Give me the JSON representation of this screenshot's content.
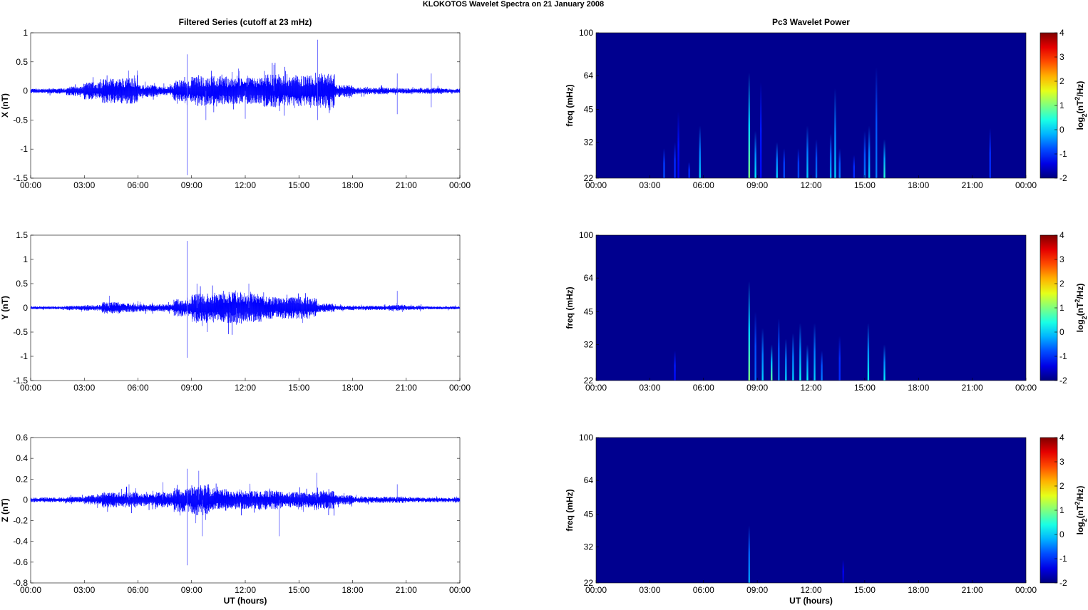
{
  "title": "KLOKOTOS Wavelet Spectra on 21 January   2008",
  "chart_data": [
    {
      "type": "line",
      "title": "Filtered Series (cutoff at 23 mHz)",
      "ylabel": "X (nT)",
      "xlabel": "",
      "ylim": [
        -1.5,
        1
      ],
      "yticks": [
        "1",
        "0.5",
        "0",
        "-0.5",
        "-1",
        "-1.5"
      ],
      "ytick_values": [
        1,
        0.5,
        0,
        -0.5,
        -1,
        -1.5
      ],
      "xticks": [
        "00:00",
        "03:00",
        "06:00",
        "09:00",
        "12:00",
        "15:00",
        "18:00",
        "21:00",
        "00:00"
      ],
      "envelope_hourly": [
        0.025,
        0.03,
        0.05,
        0.1,
        0.14,
        0.15,
        0.07,
        0.05,
        0.12,
        0.17,
        0.17,
        0.15,
        0.15,
        0.19,
        0.17,
        0.18,
        0.2,
        0.07,
        0.04,
        0.04,
        0.03,
        0.03,
        0.035,
        0.025
      ],
      "spikes": [
        [
          8.75,
          0.63
        ],
        [
          8.75,
          -1.45
        ],
        [
          16.05,
          0.88
        ],
        [
          16.05,
          -0.5
        ],
        [
          9.8,
          -0.5
        ],
        [
          20.5,
          0.3
        ],
        [
          20.5,
          -0.4
        ],
        [
          22.4,
          0.3
        ],
        [
          22.4,
          -0.28
        ],
        [
          13.6,
          0.45
        ],
        [
          12.0,
          -0.48
        ]
      ]
    },
    {
      "type": "line",
      "title": "",
      "ylabel": "Y (nT)",
      "xlabel": "",
      "ylim": [
        -1.5,
        1.5
      ],
      "yticks": [
        "1.5",
        "1",
        "0.5",
        "0",
        "-0.5",
        "-1",
        "-1.5"
      ],
      "ytick_values": [
        1.5,
        1,
        0.5,
        0,
        -0.5,
        -1,
        -1.5
      ],
      "xticks": [
        "00:00",
        "03:00",
        "06:00",
        "09:00",
        "12:00",
        "15:00",
        "18:00",
        "21:00",
        "00:00"
      ],
      "envelope_hourly": [
        0.02,
        0.02,
        0.03,
        0.04,
        0.08,
        0.06,
        0.05,
        0.05,
        0.12,
        0.2,
        0.2,
        0.22,
        0.2,
        0.15,
        0.15,
        0.15,
        0.06,
        0.03,
        0.03,
        0.03,
        0.04,
        0.03,
        0.02,
        0.02
      ],
      "spikes": [
        [
          8.75,
          1.38
        ],
        [
          8.75,
          -1.03
        ],
        [
          9.3,
          0.5
        ],
        [
          12.2,
          0.5
        ],
        [
          20.5,
          0.35
        ],
        [
          4.4,
          0.25
        ],
        [
          11.5,
          -0.35
        ]
      ]
    },
    {
      "type": "line",
      "title": "",
      "ylabel": "Z (nT)",
      "xlabel": "UT (hours)",
      "ylim": [
        -0.8,
        0.6
      ],
      "yticks": [
        "0.6",
        "0.4",
        "0.2",
        "0",
        "-0.2",
        "-0.4",
        "-0.6",
        "-0.8"
      ],
      "ytick_values": [
        0.6,
        0.4,
        0.2,
        0,
        -0.2,
        -0.4,
        -0.6,
        -0.8
      ],
      "xticks": [
        "00:00",
        "03:00",
        "06:00",
        "09:00",
        "12:00",
        "15:00",
        "18:00",
        "21:00",
        "00:00"
      ],
      "envelope_hourly": [
        0.015,
        0.015,
        0.02,
        0.03,
        0.05,
        0.05,
        0.04,
        0.05,
        0.08,
        0.1,
        0.07,
        0.06,
        0.06,
        0.06,
        0.05,
        0.05,
        0.06,
        0.03,
        0.02,
        0.02,
        0.02,
        0.015,
        0.015,
        0.015
      ],
      "spikes": [
        [
          8.75,
          0.3
        ],
        [
          8.75,
          -0.63
        ],
        [
          9.4,
          0.28
        ],
        [
          9.6,
          -0.35
        ],
        [
          13.9,
          -0.35
        ],
        [
          16.0,
          0.26
        ],
        [
          7.4,
          0.17
        ],
        [
          20.5,
          0.15
        ],
        [
          5.5,
          0.15
        ]
      ]
    },
    {
      "type": "heatmap",
      "title": "Pc3 Wavelet Power",
      "ylabel": "freq (mHz)",
      "xlabel": "",
      "ylim": [
        22,
        100
      ],
      "yscale": "log",
      "yticks": [
        "100",
        "64",
        "45",
        "32",
        "22"
      ],
      "ytick_values": [
        100,
        64,
        45,
        32,
        22
      ],
      "xticks": [
        "00:00",
        "03:00",
        "06:00",
        "09:00",
        "12:00",
        "15:00",
        "18:00",
        "21:00",
        "00:00"
      ],
      "colorbar": {
        "label": "log2(nT2/Hz)",
        "ticks": [
          "4",
          "3",
          "2",
          "1",
          "0",
          "-1",
          "-2"
        ],
        "range": [
          -2,
          4
        ]
      },
      "bursts": [
        [
          3.8,
          30,
          -0.8
        ],
        [
          4.4,
          32,
          -1
        ],
        [
          4.6,
          44,
          -1.3
        ],
        [
          5.2,
          26,
          -1
        ],
        [
          5.8,
          38,
          0
        ],
        [
          8.55,
          66,
          1
        ],
        [
          8.9,
          36,
          0.2
        ],
        [
          9.2,
          60,
          -1.2
        ],
        [
          10.1,
          32,
          0
        ],
        [
          10.5,
          30,
          -0.8
        ],
        [
          11.3,
          30,
          -0.8
        ],
        [
          11.8,
          38,
          0
        ],
        [
          12.3,
          33,
          -0.5
        ],
        [
          13.1,
          35,
          -0.2
        ],
        [
          13.35,
          56,
          0
        ],
        [
          13.6,
          30,
          -0.5
        ],
        [
          14.4,
          28,
          -1
        ],
        [
          15.0,
          36,
          -0.5
        ],
        [
          15.25,
          38,
          0
        ],
        [
          15.65,
          70,
          -0.5
        ],
        [
          16.1,
          33,
          0.5
        ],
        [
          22.0,
          37,
          -1
        ]
      ]
    },
    {
      "type": "heatmap",
      "title": "",
      "ylabel": "freq (mHz)",
      "xlabel": "",
      "ylim": [
        22,
        100
      ],
      "yscale": "log",
      "yticks": [
        "100",
        "64",
        "45",
        "32",
        "22"
      ],
      "ytick_values": [
        100,
        64,
        45,
        32,
        22
      ],
      "xticks": [
        "00:00",
        "03:00",
        "06:00",
        "09:00",
        "12:00",
        "15:00",
        "18:00",
        "21:00",
        "00:00"
      ],
      "colorbar": {
        "label": "log2(nT2/Hz)",
        "ticks": [
          "4",
          "3",
          "2",
          "1",
          "0",
          "-1",
          "-2"
        ],
        "range": [
          -2,
          4
        ]
      },
      "bursts": [
        [
          4.4,
          30,
          -1.2
        ],
        [
          8.55,
          62,
          1
        ],
        [
          8.9,
          45,
          -0.6
        ],
        [
          9.3,
          38,
          0
        ],
        [
          9.8,
          32,
          0.8
        ],
        [
          10.2,
          42,
          -0.5
        ],
        [
          10.6,
          34,
          0
        ],
        [
          11.0,
          36,
          0
        ],
        [
          11.4,
          40,
          0.3
        ],
        [
          11.8,
          32,
          0.2
        ],
        [
          12.2,
          40,
          0
        ],
        [
          12.6,
          30,
          -0.5
        ],
        [
          13.6,
          35,
          -1
        ],
        [
          15.2,
          40,
          0.3
        ],
        [
          16.1,
          32,
          0.2
        ]
      ]
    },
    {
      "type": "heatmap",
      "title": "",
      "ylabel": "freq (mHz)",
      "xlabel": "UT (hours)",
      "ylim": [
        22,
        100
      ],
      "yscale": "log",
      "yticks": [
        "100",
        "64",
        "45",
        "32",
        "22"
      ],
      "ytick_values": [
        100,
        64,
        45,
        32,
        22
      ],
      "xticks": [
        "00:00",
        "03:00",
        "06:00",
        "09:00",
        "12:00",
        "15:00",
        "18:00",
        "21:00",
        "00:00"
      ],
      "colorbar": {
        "label": "log2(nT2/Hz)",
        "ticks": [
          "4",
          "3",
          "2",
          "1",
          "0",
          "-1",
          "-2"
        ],
        "range": [
          -2,
          4
        ]
      },
      "bursts": [
        [
          8.55,
          40,
          -0.3
        ],
        [
          13.8,
          28,
          -1.6
        ]
      ]
    }
  ]
}
